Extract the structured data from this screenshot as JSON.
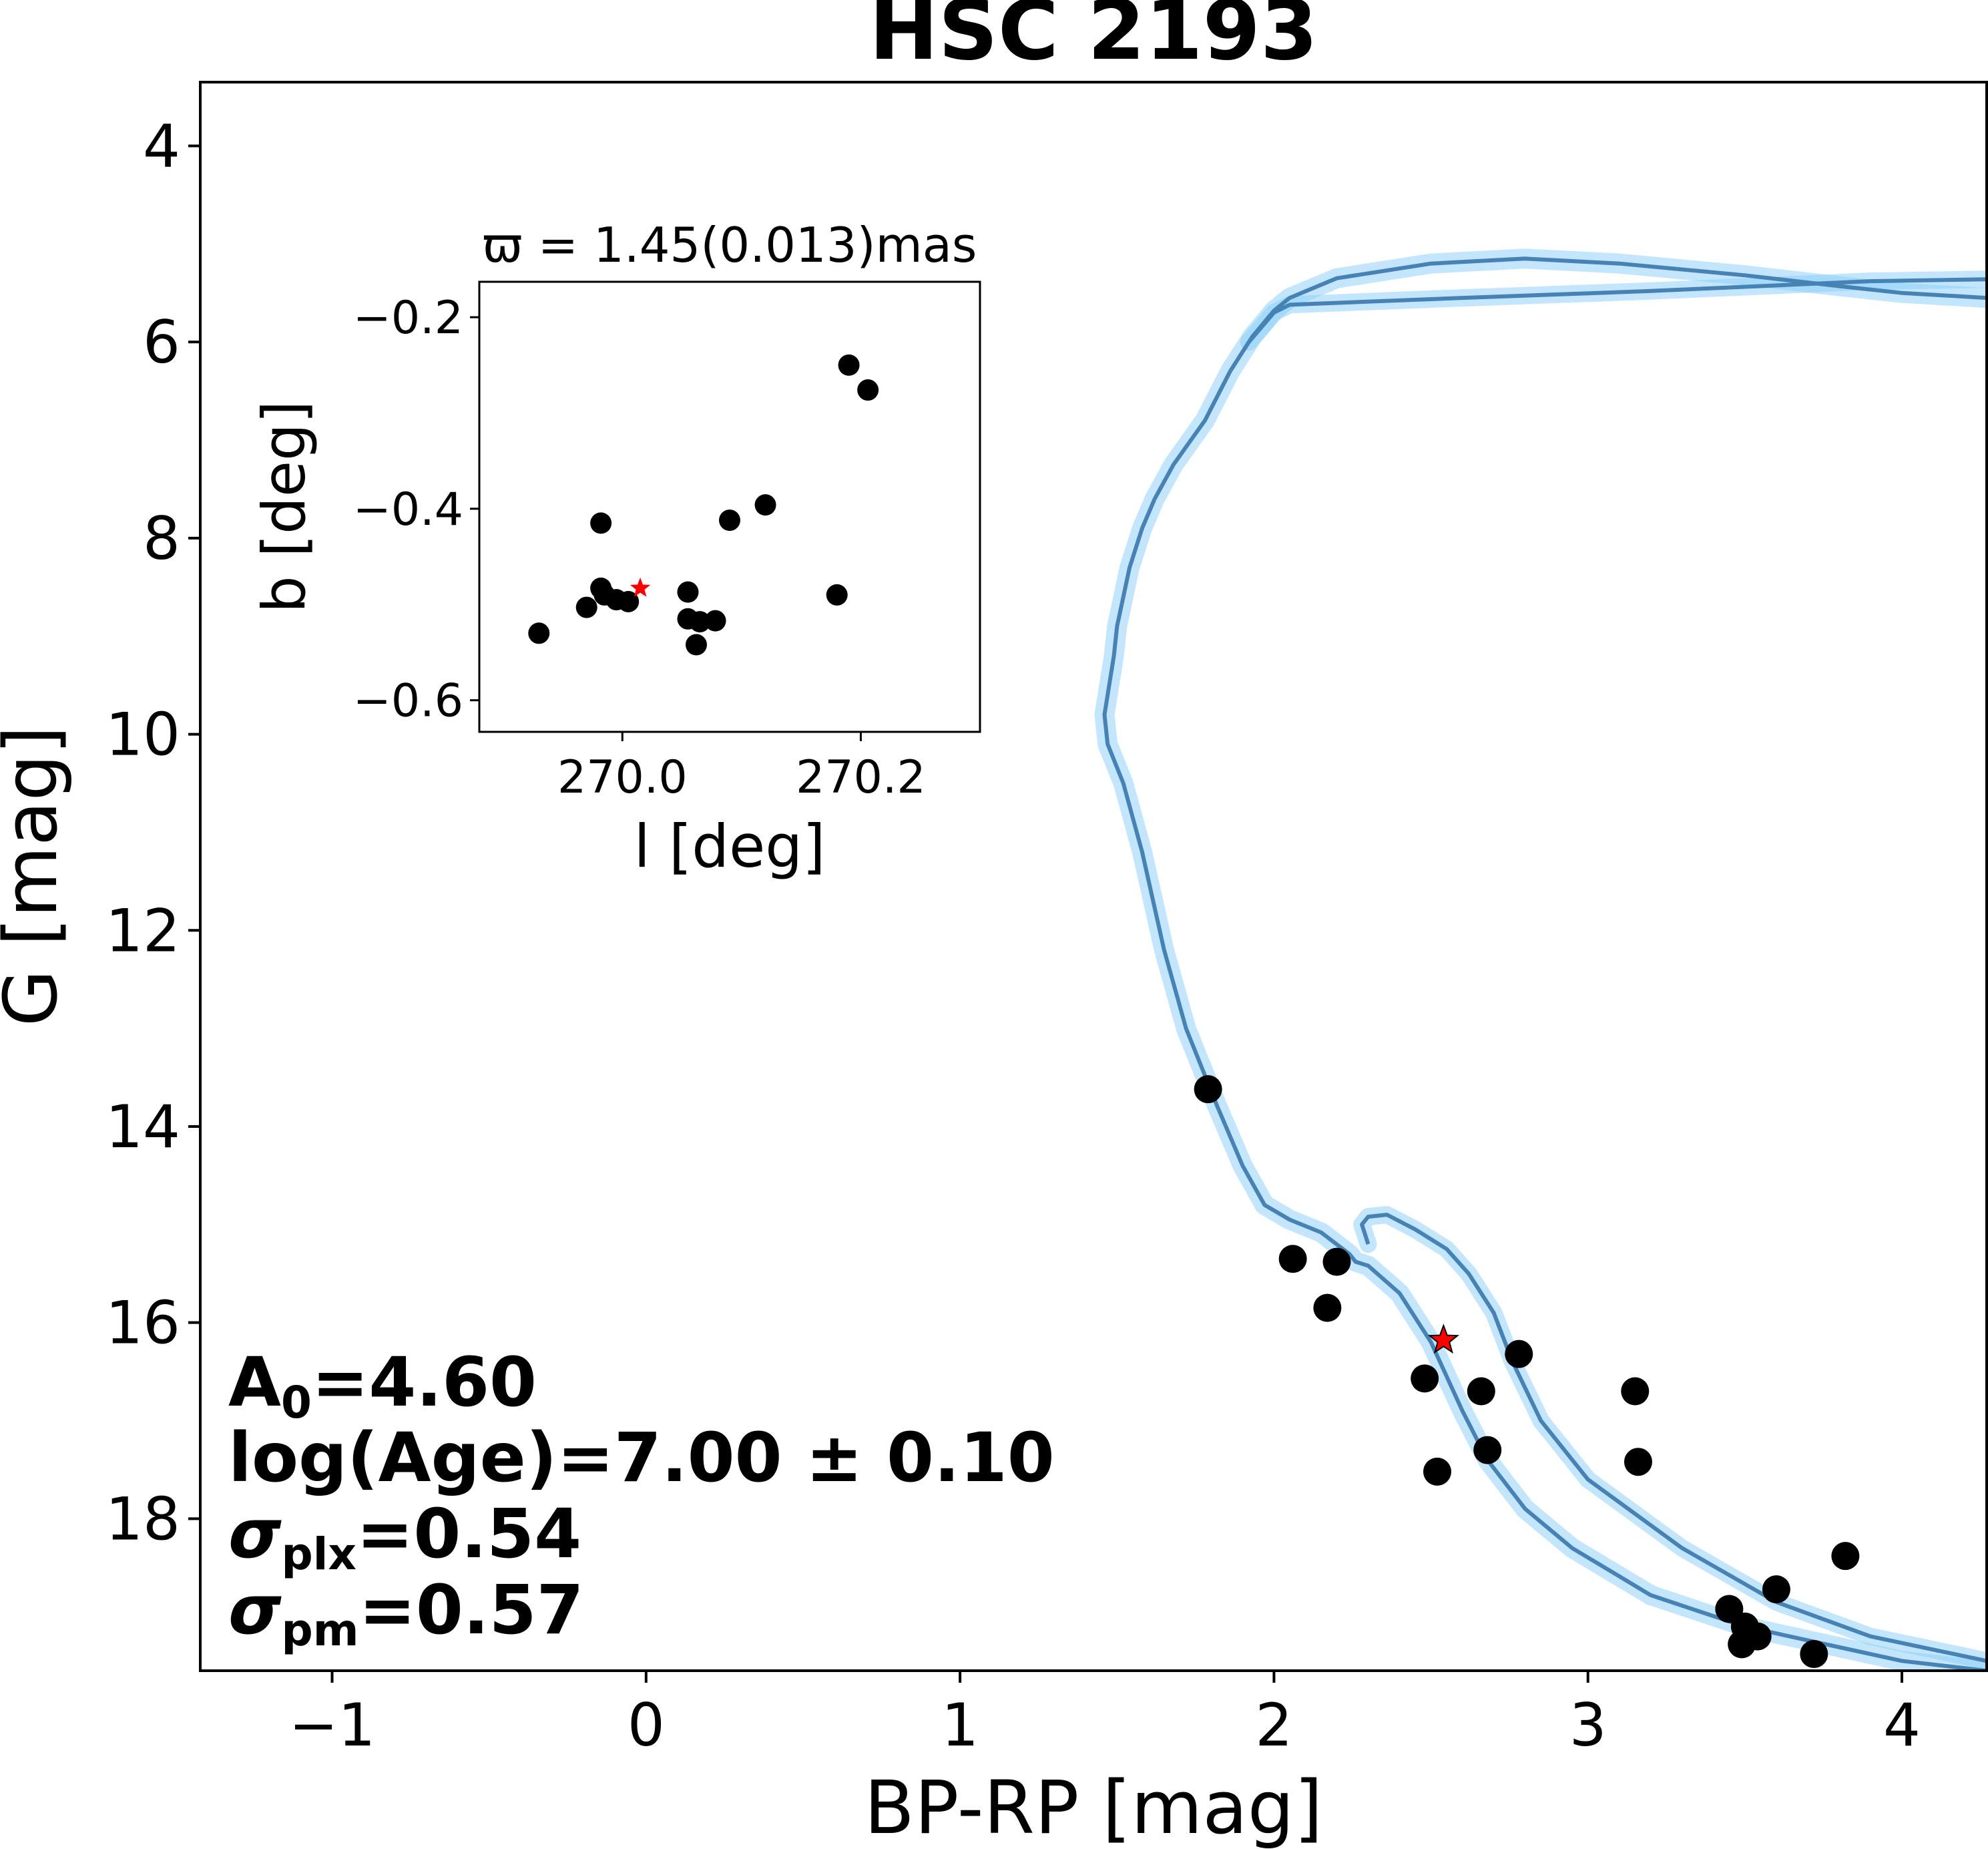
{
  "colors": {
    "isochrone": "#4682b4",
    "band": "#87cefa",
    "member": "#000000",
    "highlight": "#ff0000"
  },
  "chart_data": [
    {
      "type": "scatter",
      "role": "main",
      "title": "HSC 2193",
      "xlabel": "BP-RP [mag]",
      "ylabel": "G [mag]",
      "xlim": [
        -1.42,
        4.27
      ],
      "ylim": [
        19.55,
        3.35
      ],
      "y_inverted": true,
      "xticks": [
        -1,
        0,
        1,
        2,
        3,
        4
      ],
      "xtick_labels": [
        "−1",
        "0",
        "1",
        "2",
        "3",
        "4"
      ],
      "yticks": [
        4,
        6,
        8,
        10,
        12,
        14,
        16,
        18
      ],
      "ytick_labels": [
        "4",
        "6",
        "8",
        "10",
        "12",
        "14",
        "16",
        "18"
      ],
      "series": [
        {
          "name": "members",
          "marker": "circle",
          "points": [
            [
              1.79,
              13.62
            ],
            [
              2.06,
              15.35
            ],
            [
              2.2,
              15.38
            ],
            [
              2.17,
              15.85
            ],
            [
              2.48,
              16.57
            ],
            [
              2.52,
              17.52
            ],
            [
              2.66,
              16.7
            ],
            [
              2.68,
              17.3
            ],
            [
              2.78,
              16.32
            ],
            [
              3.15,
              16.7
            ],
            [
              3.16,
              17.42
            ],
            [
              3.45,
              18.92
            ],
            [
              3.5,
              19.1
            ],
            [
              3.49,
              19.28
            ],
            [
              3.54,
              19.2
            ],
            [
              3.6,
              18.72
            ],
            [
              3.72,
              19.38
            ],
            [
              3.82,
              18.38
            ]
          ]
        },
        {
          "name": "target",
          "marker": "star",
          "points": [
            [
              2.54,
              16.18
            ]
          ]
        },
        {
          "name": "isochrone_main",
          "marker": "line",
          "points": [
            [
              4.27,
              19.55
            ],
            [
              4.0,
              19.45
            ],
            [
              3.5,
              19.1
            ],
            [
              3.2,
              18.78
            ],
            [
              2.95,
              18.3
            ],
            [
              2.8,
              17.9
            ],
            [
              2.68,
              17.4
            ],
            [
              2.6,
              16.9
            ],
            [
              2.5,
              16.2
            ],
            [
              2.4,
              15.7
            ],
            [
              2.3,
              15.42
            ],
            [
              2.26,
              15.38
            ],
            [
              2.24,
              15.3
            ],
            [
              2.15,
              15.08
            ],
            [
              2.05,
              14.95
            ],
            [
              1.97,
              14.8
            ],
            [
              1.9,
              14.4
            ],
            [
              1.82,
              13.8
            ],
            [
              1.72,
              13.0
            ],
            [
              1.65,
              12.2
            ],
            [
              1.58,
              11.2
            ],
            [
              1.52,
              10.5
            ],
            [
              1.47,
              10.1
            ],
            [
              1.46,
              9.8
            ],
            [
              1.49,
              9.2
            ],
            [
              1.5,
              8.9
            ],
            [
              1.52,
              8.6
            ],
            [
              1.54,
              8.3
            ],
            [
              1.58,
              7.9
            ],
            [
              1.62,
              7.6
            ],
            [
              1.68,
              7.25
            ],
            [
              1.78,
              6.8
            ],
            [
              1.86,
              6.3
            ],
            [
              1.93,
              5.95
            ],
            [
              2.0,
              5.68
            ],
            [
              2.05,
              5.55
            ],
            [
              2.2,
              5.35
            ],
            [
              2.5,
              5.2
            ],
            [
              2.8,
              5.15
            ],
            [
              3.1,
              5.2
            ],
            [
              3.5,
              5.32
            ],
            [
              3.8,
              5.43
            ],
            [
              4.0,
              5.5
            ],
            [
              4.27,
              5.55
            ]
          ]
        },
        {
          "name": "isochrone_pms",
          "marker": "line",
          "points": [
            [
              2.3,
              15.2
            ],
            [
              2.28,
              15.0
            ],
            [
              2.3,
              14.92
            ],
            [
              2.36,
              14.9
            ],
            [
              2.45,
              15.05
            ],
            [
              2.55,
              15.25
            ],
            [
              2.62,
              15.5
            ],
            [
              2.7,
              15.9
            ],
            [
              2.76,
              16.4
            ],
            [
              2.85,
              17.0
            ],
            [
              3.0,
              17.6
            ],
            [
              3.3,
              18.3
            ],
            [
              3.6,
              18.85
            ],
            [
              3.9,
              19.2
            ],
            [
              4.27,
              19.45
            ]
          ]
        },
        {
          "name": "isochrone_rgb_branch",
          "marker": "line",
          "points": [
            [
              1.92,
              6.0
            ],
            [
              2.0,
              5.7
            ],
            [
              2.05,
              5.62
            ],
            [
              2.6,
              5.55
            ],
            [
              3.2,
              5.48
            ],
            [
              3.9,
              5.38
            ],
            [
              4.27,
              5.36
            ]
          ]
        }
      ],
      "annotations": {
        "extinction": "A",
        "extinction_sub": "0",
        "extinction_value": "=4.60",
        "age": "log(Age)=7.00 ± 0.10",
        "sigma_plx_symbol": "σ",
        "sigma_plx_sub": "plx",
        "sigma_plx_value": "=0.54",
        "sigma_pm_symbol": "σ",
        "sigma_pm_sub": "pm",
        "sigma_pm_value": "=0.57"
      }
    },
    {
      "type": "scatter",
      "role": "inset",
      "title": "ϖ = 1.45(0.013)mas",
      "xlabel": "l [deg]",
      "ylabel": "b [deg]",
      "xlim": [
        269.88,
        270.3
      ],
      "ylim": [
        -0.633,
        -0.163
      ],
      "xticks": [
        270.0,
        270.2
      ],
      "xtick_labels": [
        "270.0",
        "270.2"
      ],
      "yticks": [
        -0.2,
        -0.4,
        -0.6
      ],
      "ytick_labels": [
        "−0.2",
        "−0.4",
        "−0.6"
      ],
      "series": [
        {
          "name": "members",
          "marker": "circle",
          "points": [
            [
              269.93,
              -0.53
            ],
            [
              269.97,
              -0.503
            ],
            [
              269.982,
              -0.483
            ],
            [
              269.985,
              -0.49
            ],
            [
              269.995,
              -0.495
            ],
            [
              270.005,
              -0.497
            ],
            [
              269.982,
              -0.415
            ],
            [
              270.055,
              -0.487
            ],
            [
              270.055,
              -0.515
            ],
            [
              270.065,
              -0.518
            ],
            [
              270.078,
              -0.517
            ],
            [
              270.062,
              -0.542
            ],
            [
              270.09,
              -0.412
            ],
            [
              270.12,
              -0.396
            ],
            [
              270.18,
              -0.49
            ],
            [
              270.19,
              -0.25
            ],
            [
              270.206,
              -0.276
            ]
          ]
        },
        {
          "name": "target",
          "marker": "star",
          "points": [
            [
              270.015,
              -0.483
            ]
          ]
        }
      ]
    }
  ]
}
